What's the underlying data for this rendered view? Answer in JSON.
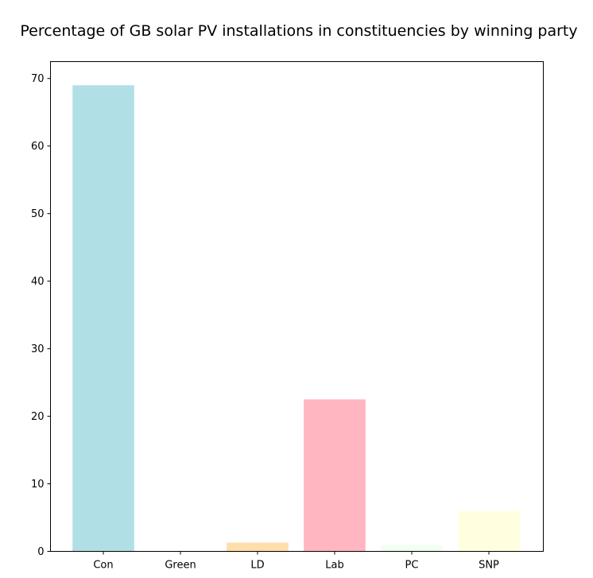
{
  "chart_data": {
    "type": "bar",
    "title": "Percentage of GB solar PV installations in constituencies by winning party",
    "xlabel": "",
    "ylabel": "",
    "categories": [
      "Con",
      "Green",
      "LD",
      "Lab",
      "PC",
      "SNP"
    ],
    "values": [
      69.0,
      0.03,
      1.3,
      22.5,
      0.9,
      6.0
    ],
    "colors": [
      "#b0e0e6",
      "#90ee90",
      "#ffdead",
      "#ffb6c1",
      "#f0fff0",
      "#ffffe0"
    ],
    "ylim": [
      0,
      72.5
    ],
    "yticks": [
      0,
      10,
      20,
      30,
      40,
      50,
      60,
      70
    ],
    "grid": false,
    "legend": "none"
  }
}
